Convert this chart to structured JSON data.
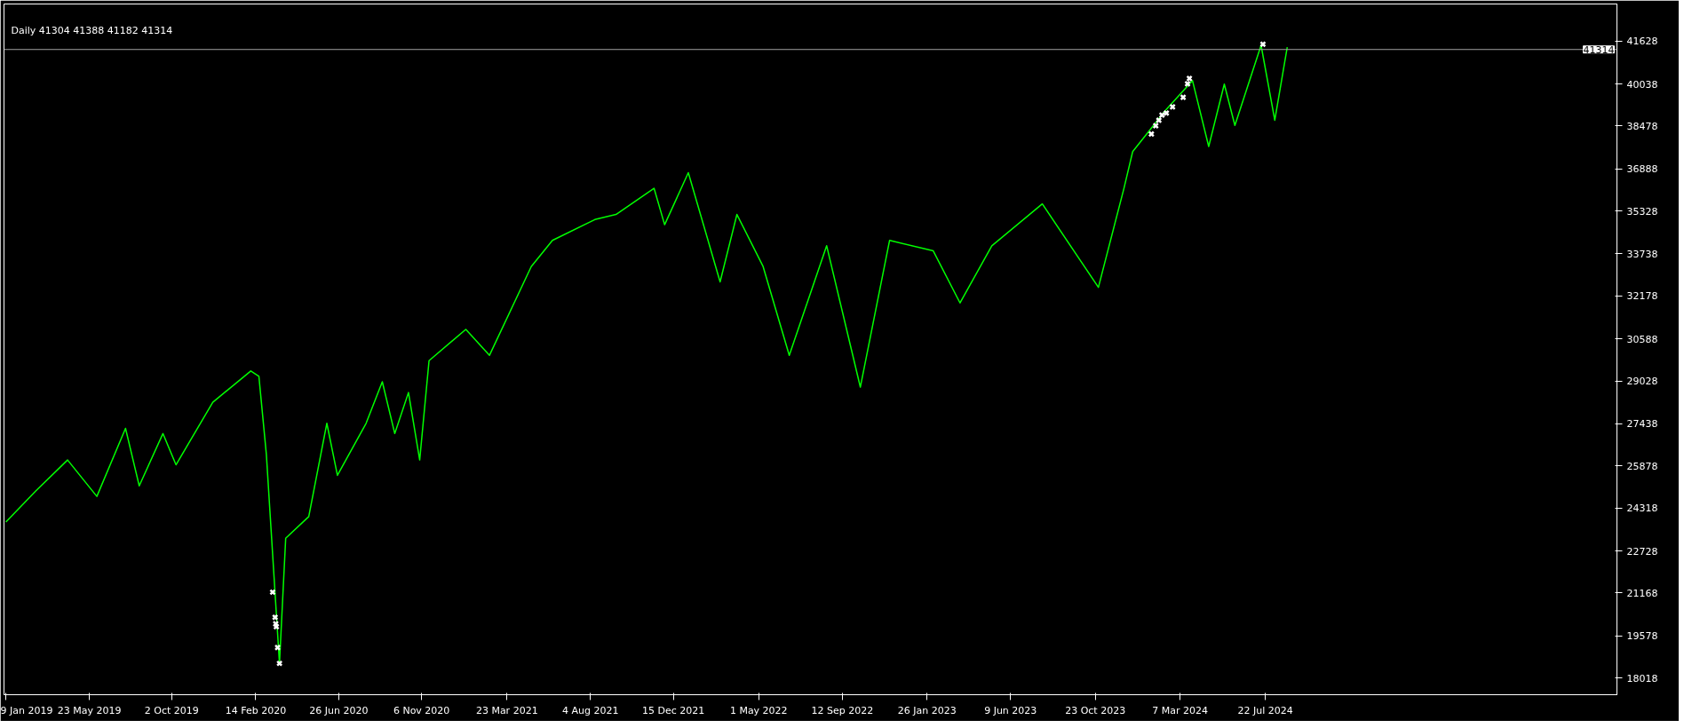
{
  "chart_data": {
    "type": "line",
    "title": "Daily  41304 41388 41182 41314",
    "xlim": [
      "2019-01-06",
      "2026-02-06"
    ],
    "xticks": [
      {
        "value": "2019-01-09",
        "label": "9 Jan 2019"
      },
      {
        "value": "2019-05-23",
        "label": "23 May 2019"
      },
      {
        "value": "2019-10-02",
        "label": "2 Oct 2019"
      },
      {
        "value": "2020-02-14",
        "label": "14 Feb 2020"
      },
      {
        "value": "2020-06-26",
        "label": "26 Jun 2020"
      },
      {
        "value": "2020-11-06",
        "label": "6 Nov 2020"
      },
      {
        "value": "2021-03-23",
        "label": "23 Mar 2021"
      },
      {
        "value": "2021-08-04",
        "label": "4 Aug 2021"
      },
      {
        "value": "2021-12-15",
        "label": "15 Dec 2021"
      },
      {
        "value": "2022-05-01",
        "label": "1 May 2022"
      },
      {
        "value": "2022-09-12",
        "label": "12 Sep 2022"
      },
      {
        "value": "2023-01-26",
        "label": "26 Jan 2023"
      },
      {
        "value": "2023-06-09",
        "label": "9 Jun 2023"
      },
      {
        "value": "2023-10-23",
        "label": "23 Oct 2023"
      },
      {
        "value": "2024-03-07",
        "label": "7 Mar 2024"
      },
      {
        "value": "2024-07-22",
        "label": "22 Jul 2024"
      }
    ],
    "ylim": [
      17400,
      43000
    ],
    "yticks": [
      18018,
      19578,
      21168,
      22728,
      24318,
      25878,
      27438,
      29028,
      30588,
      32178,
      33738,
      35328,
      36888,
      38478,
      40038,
      41628
    ],
    "grid": false,
    "series": [
      {
        "color": "#00ff00",
        "marker": "none",
        "x": [
          "2019-01-09",
          "2019-02-26",
          "2019-04-18",
          "2019-06-04",
          "2019-07-20",
          "2019-08-11",
          "2019-09-18",
          "2019-10-09",
          "2019-12-07",
          "2020-02-06",
          "2020-02-19",
          "2020-03-02",
          "2020-03-23",
          "2020-04-02",
          "2020-05-09",
          "2020-06-07",
          "2020-06-24",
          "2020-08-09",
          "2020-09-04",
          "2020-09-24",
          "2020-10-16",
          "2020-11-03",
          "2020-11-18",
          "2021-01-16",
          "2021-02-23",
          "2021-05-01",
          "2021-06-04",
          "2021-08-11",
          "2021-09-14",
          "2021-11-14",
          "2021-12-01",
          "2022-01-08",
          "2022-02-28",
          "2022-03-27",
          "2022-05-08",
          "2022-06-19",
          "2022-08-18",
          "2022-10-11",
          "2022-11-27",
          "2023-02-05",
          "2023-03-20",
          "2023-05-10",
          "2023-07-30",
          "2023-10-28",
          "2023-12-08",
          "2023-12-22",
          "2024-02-13",
          "2024-03-27",
          "2024-04-22",
          "2024-05-17",
          "2024-06-03",
          "2024-07-15",
          "2024-08-06",
          "2024-08-26"
        ],
        "values": [
          23800,
          24950,
          26100,
          24750,
          27270,
          25140,
          27080,
          25920,
          28240,
          29400,
          29200,
          26300,
          18560,
          23200,
          24000,
          27460,
          25530,
          27460,
          29000,
          27080,
          28600,
          26100,
          29780,
          30940,
          29980,
          33270,
          34240,
          35010,
          35200,
          36170,
          34820,
          36750,
          32700,
          35200,
          33270,
          29980,
          34040,
          28800,
          34240,
          33850,
          31920,
          34040,
          35590,
          32500,
          36170,
          37530,
          39070,
          40160,
          37720,
          40030,
          38500,
          41470,
          38690,
          41400
        ]
      },
      {
        "type": "scatter",
        "color": "#ffffff",
        "marker": "cross",
        "x": [
          "2020-03-12",
          "2020-03-16",
          "2020-03-17",
          "2020-03-18",
          "2020-03-20",
          "2020-03-23",
          "2024-01-21",
          "2024-01-28",
          "2024-02-02",
          "2024-02-07",
          "2024-02-14",
          "2024-02-24",
          "2024-03-12",
          "2024-03-19",
          "2024-03-22",
          "2024-07-18"
        ],
        "values": [
          21200,
          20270,
          20030,
          19920,
          19150,
          18560,
          38180,
          38490,
          38690,
          38880,
          38960,
          39190,
          39540,
          40040,
          40240,
          41510
        ]
      }
    ],
    "ref_lines": [
      {
        "axis": "y",
        "value": 41314,
        "label": "41314",
        "color": "#a0a0a0",
        "line_style": "solid"
      }
    ]
  }
}
